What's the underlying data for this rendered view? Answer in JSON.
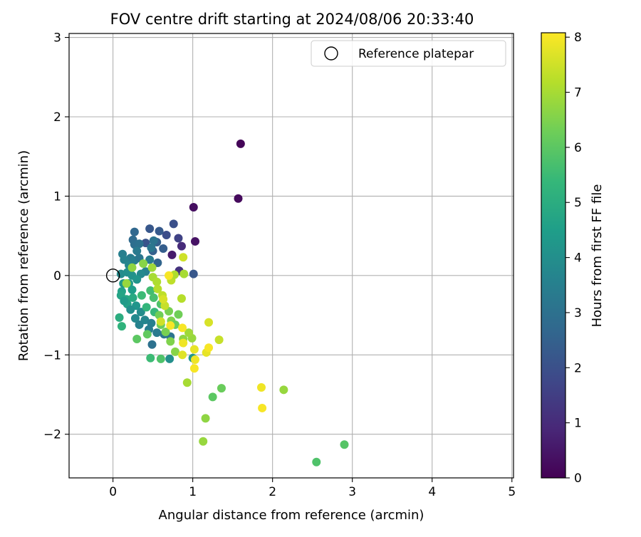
{
  "chart_data": {
    "type": "scatter",
    "title": "FOV centre drift starting at 2024/08/06 20:33:40",
    "xlabel": "Angular distance from reference (arcmin)",
    "ylabel": "Rotation from reference (arcmin)",
    "xlim": [
      -0.55,
      5.02
    ],
    "ylim": [
      -2.55,
      3.05
    ],
    "xticks": [
      0,
      1,
      2,
      3,
      4,
      5
    ],
    "yticks": [
      -2,
      -1,
      0,
      1,
      2,
      3
    ],
    "xtick_labels": [
      "0",
      "1",
      "2",
      "3",
      "4",
      "5"
    ],
    "ytick_labels": [
      "−2",
      "−1",
      "0",
      "1",
      "2",
      "3"
    ],
    "grid": true,
    "legend": {
      "position": "top-right",
      "entries": [
        {
          "label": "Reference platepar",
          "marker": "open-circle",
          "x": 0,
          "y": 0
        }
      ]
    },
    "colorbar": {
      "label": "Hours from first FF file",
      "colormap": "viridis",
      "range": [
        0,
        8.08
      ],
      "ticks": [
        0,
        1,
        2,
        3,
        4,
        5,
        6,
        7,
        8
      ],
      "tick_labels": [
        "0",
        "1",
        "2",
        "3",
        "4",
        "5",
        "6",
        "7",
        "8"
      ]
    },
    "colormap_stops": [
      "#440154",
      "#482878",
      "#3e4989",
      "#31688e",
      "#26828e",
      "#1f9e89",
      "#35b779",
      "#6ece58",
      "#b5de2b",
      "#fde725"
    ],
    "points": [
      {
        "x": 1.6,
        "y": 1.66,
        "c": 0.1
      },
      {
        "x": 1.57,
        "y": 0.97,
        "c": 0.2
      },
      {
        "x": 1.01,
        "y": 0.86,
        "c": 0.3
      },
      {
        "x": 1.03,
        "y": 0.43,
        "c": 0.4
      },
      {
        "x": 0.74,
        "y": 0.26,
        "c": 0.6
      },
      {
        "x": 0.86,
        "y": 0.37,
        "c": 1.0
      },
      {
        "x": 0.83,
        "y": 0.06,
        "c": 1.2
      },
      {
        "x": 0.82,
        "y": 0.47,
        "c": 1.6
      },
      {
        "x": 0.67,
        "y": 0.51,
        "c": 1.9
      },
      {
        "x": 0.76,
        "y": 0.65,
        "c": 2.0
      },
      {
        "x": 0.58,
        "y": 0.56,
        "c": 2.3
      },
      {
        "x": 0.46,
        "y": 0.59,
        "c": 2.2
      },
      {
        "x": 0.41,
        "y": 0.41,
        "c": 2.1
      },
      {
        "x": 1.01,
        "y": 0.02,
        "c": 2.2
      },
      {
        "x": 0.55,
        "y": 0.42,
        "c": 2.5
      },
      {
        "x": 0.63,
        "y": 0.34,
        "c": 2.4
      },
      {
        "x": 0.5,
        "y": 0.31,
        "c": 2.5
      },
      {
        "x": 0.56,
        "y": 0.16,
        "c": 2.6
      },
      {
        "x": 0.27,
        "y": 0.55,
        "c": 2.7
      },
      {
        "x": 0.25,
        "y": 0.45,
        "c": 2.8
      },
      {
        "x": 0.27,
        "y": 0.39,
        "c": 2.9
      },
      {
        "x": 0.33,
        "y": 0.4,
        "c": 3.0
      },
      {
        "x": 0.51,
        "y": 0.44,
        "c": 3.1
      },
      {
        "x": 0.48,
        "y": 0.35,
        "c": 3.2
      },
      {
        "x": 0.3,
        "y": 0.31,
        "c": 3.3
      },
      {
        "x": 0.22,
        "y": 0.22,
        "c": 3.4
      },
      {
        "x": 0.12,
        "y": 0.27,
        "c": 3.5
      },
      {
        "x": 0.14,
        "y": 0.2,
        "c": 3.6
      },
      {
        "x": 0.2,
        "y": 0.13,
        "c": 3.7
      },
      {
        "x": 0.27,
        "y": 0.19,
        "c": 3.5
      },
      {
        "x": 0.33,
        "y": 0.22,
        "c": 3.2
      },
      {
        "x": 0.46,
        "y": 0.2,
        "c": 3.4
      },
      {
        "x": 0.41,
        "y": 0.05,
        "c": 3.6
      },
      {
        "x": 0.35,
        "y": 0.02,
        "c": 3.8
      },
      {
        "x": 0.1,
        "y": 0.02,
        "c": 3.9
      },
      {
        "x": 0.18,
        "y": 0.04,
        "c": 4.0
      },
      {
        "x": 0.24,
        "y": 0.0,
        "c": 4.1
      },
      {
        "x": 0.3,
        "y": -0.05,
        "c": 4.2
      },
      {
        "x": 0.13,
        "y": -0.1,
        "c": 4.3
      },
      {
        "x": 0.2,
        "y": -0.1,
        "c": 4.4
      },
      {
        "x": 0.24,
        "y": -0.18,
        "c": 4.5
      },
      {
        "x": 0.11,
        "y": -0.2,
        "c": 4.6
      },
      {
        "x": 0.1,
        "y": -0.25,
        "c": 4.7
      },
      {
        "x": 0.17,
        "y": -0.3,
        "c": 4.8
      },
      {
        "x": 0.25,
        "y": -0.28,
        "c": 4.9
      },
      {
        "x": 0.18,
        "y": -0.36,
        "c": 4.6
      },
      {
        "x": 0.14,
        "y": -0.32,
        "c": 4.4
      },
      {
        "x": 0.29,
        "y": -0.38,
        "c": 4.2
      },
      {
        "x": 0.22,
        "y": -0.43,
        "c": 4.0
      },
      {
        "x": 0.35,
        "y": -0.46,
        "c": 3.9
      },
      {
        "x": 0.28,
        "y": -0.54,
        "c": 3.8
      },
      {
        "x": 0.4,
        "y": -0.56,
        "c": 3.7
      },
      {
        "x": 0.33,
        "y": -0.62,
        "c": 3.6
      },
      {
        "x": 0.48,
        "y": -0.6,
        "c": 3.5
      },
      {
        "x": 0.45,
        "y": -0.68,
        "c": 3.4
      },
      {
        "x": 0.55,
        "y": -0.72,
        "c": 3.3
      },
      {
        "x": 0.64,
        "y": -0.74,
        "c": 3.2
      },
      {
        "x": 0.72,
        "y": -0.77,
        "c": 3.1
      },
      {
        "x": 0.49,
        "y": -0.87,
        "c": 3.0
      },
      {
        "x": 0.08,
        "y": -0.53,
        "c": 5.0
      },
      {
        "x": 0.11,
        "y": -0.64,
        "c": 5.2
      },
      {
        "x": 0.42,
        "y": -0.4,
        "c": 5.3
      },
      {
        "x": 0.52,
        "y": -0.46,
        "c": 5.4
      },
      {
        "x": 0.36,
        "y": -0.25,
        "c": 5.5
      },
      {
        "x": 0.47,
        "y": -0.19,
        "c": 5.6
      },
      {
        "x": 0.51,
        "y": -0.28,
        "c": 5.7
      },
      {
        "x": 0.6,
        "y": -0.36,
        "c": 5.8
      },
      {
        "x": 0.47,
        "y": -1.04,
        "c": 5.5
      },
      {
        "x": 0.6,
        "y": -1.05,
        "c": 5.8
      },
      {
        "x": 0.71,
        "y": -1.05,
        "c": 4.0
      },
      {
        "x": 1.0,
        "y": -1.04,
        "c": 4.2
      },
      {
        "x": 0.3,
        "y": -0.8,
        "c": 6.0
      },
      {
        "x": 0.43,
        "y": -0.74,
        "c": 6.1
      },
      {
        "x": 0.6,
        "y": -0.62,
        "c": 6.2
      },
      {
        "x": 0.58,
        "y": -0.5,
        "c": 6.3
      },
      {
        "x": 0.7,
        "y": -0.45,
        "c": 6.4
      },
      {
        "x": 0.73,
        "y": -0.57,
        "c": 6.5
      },
      {
        "x": 0.82,
        "y": -0.49,
        "c": 6.3
      },
      {
        "x": 0.78,
        "y": -0.62,
        "c": 6.2
      },
      {
        "x": 0.66,
        "y": -0.71,
        "c": 6.4
      },
      {
        "x": 0.72,
        "y": -0.83,
        "c": 6.5
      },
      {
        "x": 0.78,
        "y": -0.96,
        "c": 6.6
      },
      {
        "x": 0.88,
        "y": -0.8,
        "c": 6.7
      },
      {
        "x": 0.99,
        "y": -0.79,
        "c": 6.8
      },
      {
        "x": 0.95,
        "y": -0.72,
        "c": 6.9
      },
      {
        "x": 0.38,
        "y": 0.15,
        "c": 6.6
      },
      {
        "x": 0.24,
        "y": 0.1,
        "c": 6.7
      },
      {
        "x": 0.17,
        "y": -0.1,
        "c": 6.8
      },
      {
        "x": 0.49,
        "y": 0.1,
        "c": 6.9
      },
      {
        "x": 0.5,
        "y": -0.02,
        "c": 7.0
      },
      {
        "x": 0.55,
        "y": -0.08,
        "c": 7.1
      },
      {
        "x": 0.56,
        "y": -0.17,
        "c": 7.2
      },
      {
        "x": 0.62,
        "y": -0.25,
        "c": 7.3
      },
      {
        "x": 0.65,
        "y": -0.38,
        "c": 7.4
      },
      {
        "x": 0.6,
        "y": -0.58,
        "c": 7.5
      },
      {
        "x": 0.73,
        "y": -0.06,
        "c": 7.3
      },
      {
        "x": 0.77,
        "y": 0.01,
        "c": 7.1
      },
      {
        "x": 0.89,
        "y": 0.02,
        "c": 7.0
      },
      {
        "x": 0.86,
        "y": -0.29,
        "c": 7.2
      },
      {
        "x": 0.88,
        "y": 0.23,
        "c": 7.5
      },
      {
        "x": 0.63,
        "y": -0.3,
        "c": 7.6
      },
      {
        "x": 0.7,
        "y": 0.0,
        "c": 8.0
      },
      {
        "x": 0.72,
        "y": -0.63,
        "c": 8.0
      },
      {
        "x": 0.87,
        "y": -0.66,
        "c": 8.0
      },
      {
        "x": 0.88,
        "y": -0.85,
        "c": 7.9
      },
      {
        "x": 1.02,
        "y": -0.93,
        "c": 7.8
      },
      {
        "x": 1.03,
        "y": -1.06,
        "c": 7.9
      },
      {
        "x": 1.02,
        "y": -1.17,
        "c": 8.0
      },
      {
        "x": 0.87,
        "y": -1.0,
        "c": 7.7
      },
      {
        "x": 1.17,
        "y": -0.97,
        "c": 7.8
      },
      {
        "x": 1.2,
        "y": -0.91,
        "c": 8.0
      },
      {
        "x": 1.2,
        "y": -0.59,
        "c": 7.6
      },
      {
        "x": 1.33,
        "y": -0.81,
        "c": 7.4
      },
      {
        "x": 0.93,
        "y": -1.35,
        "c": 7.0
      },
      {
        "x": 1.25,
        "y": -1.53,
        "c": 6.0
      },
      {
        "x": 1.36,
        "y": -1.42,
        "c": 6.2
      },
      {
        "x": 1.16,
        "y": -1.8,
        "c": 6.7
      },
      {
        "x": 1.13,
        "y": -2.09,
        "c": 6.8
      },
      {
        "x": 1.86,
        "y": -1.41,
        "c": 7.9
      },
      {
        "x": 1.87,
        "y": -1.67,
        "c": 8.0
      },
      {
        "x": 2.14,
        "y": -1.44,
        "c": 6.8
      },
      {
        "x": 2.55,
        "y": -2.35,
        "c": 5.8
      },
      {
        "x": 2.9,
        "y": -2.13,
        "c": 5.9
      }
    ]
  }
}
